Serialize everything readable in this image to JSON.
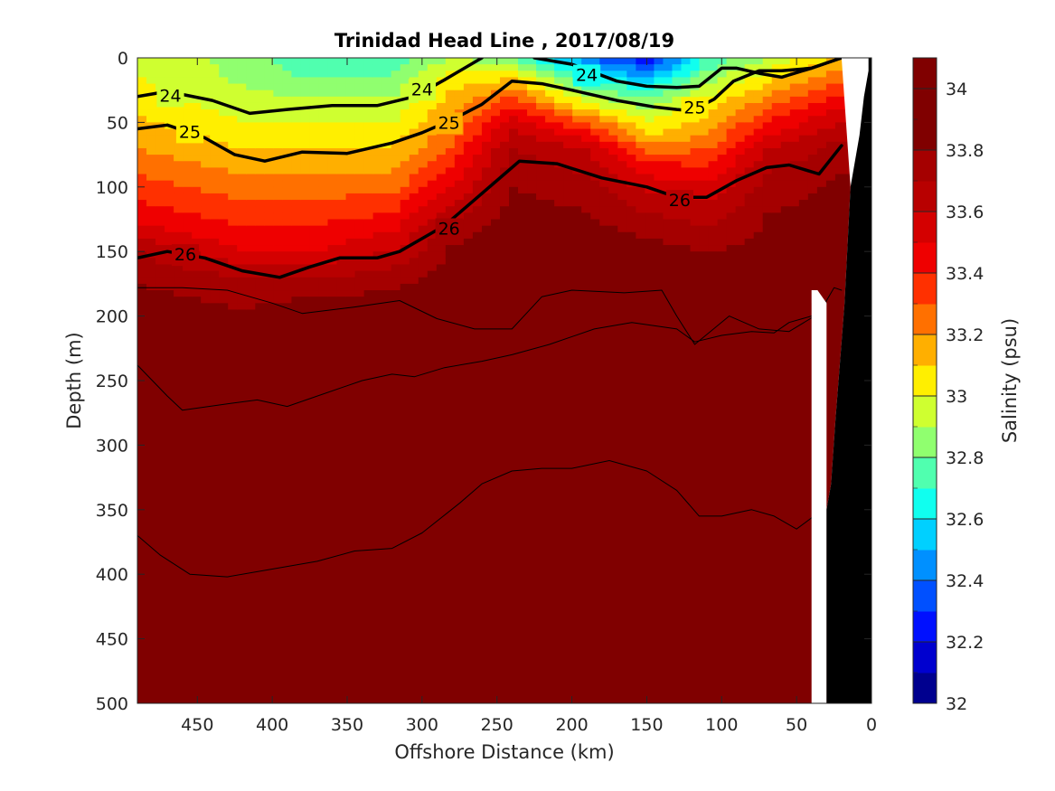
{
  "chart_data": {
    "type": "heatmap",
    "subtype": "filled-contour section",
    "title": "Trinidad Head Line , 2017/08/19",
    "xlabel": "Offshore Distance (km)",
    "ylabel": "Depth (m)",
    "colorbar_label": "Salinity (psu)",
    "xlim": [
      490,
      0
    ],
    "x_reversed": true,
    "ylim": [
      0,
      500
    ],
    "y_reversed": true,
    "x_ticks": [
      450,
      400,
      350,
      300,
      250,
      200,
      150,
      100,
      50,
      0
    ],
    "y_ticks": [
      0,
      50,
      100,
      150,
      200,
      250,
      300,
      350,
      400,
      450,
      500
    ],
    "colorbar": {
      "range": [
        32,
        34.1
      ],
      "step": 0.1,
      "tick_values": [
        32,
        32.2,
        32.4,
        32.6,
        32.8,
        33,
        33.2,
        33.4,
        33.6,
        33.8,
        34
      ],
      "tick_labels": [
        "32",
        "32.2",
        "32.4",
        "32.6",
        "32.8",
        "33",
        "33.2",
        "33.4",
        "33.6",
        "33.8",
        "34"
      ],
      "colors": [
        "#00008f",
        "#0000cf",
        "#0010ff",
        "#0050ff",
        "#0090ff",
        "#00d0ff",
        "#10ffef",
        "#50ffaf",
        "#90ff6f",
        "#cfff30",
        "#ffef00",
        "#ffaf00",
        "#ff7000",
        "#ff3000",
        "#ef0000",
        "#d40000",
        "#b80000",
        "#a50000",
        "#800000"
      ]
    },
    "salinity_profiles": [
      {
        "distance_km": 490,
        "depth_m": [
          0,
          10,
          25,
          45,
          70,
          100,
          130,
          150,
          200,
          400,
          500
        ],
        "salinity_psu": [
          33.0,
          33.0,
          33.02,
          33.1,
          33.2,
          33.35,
          33.5,
          33.7,
          33.9,
          34.0,
          34.0
        ]
      },
      {
        "distance_km": 420,
        "depth_m": [
          0,
          10,
          30,
          60,
          90,
          120,
          150,
          170,
          220,
          450,
          500
        ],
        "salinity_psu": [
          32.85,
          32.87,
          32.92,
          33.05,
          33.2,
          33.35,
          33.5,
          33.7,
          33.9,
          33.95,
          33.95
        ]
      },
      {
        "distance_km": 370,
        "depth_m": [
          0,
          10,
          30,
          60,
          90,
          120,
          150,
          170,
          200,
          400,
          500
        ],
        "salinity_psu": [
          32.7,
          32.75,
          32.9,
          33.05,
          33.2,
          33.35,
          33.5,
          33.7,
          33.9,
          34.0,
          34.0
        ]
      },
      {
        "distance_km": 320,
        "depth_m": [
          0,
          10,
          30,
          60,
          90,
          120,
          150,
          170,
          200,
          400,
          500
        ],
        "salinity_psu": [
          32.75,
          32.78,
          32.9,
          33.05,
          33.2,
          33.4,
          33.6,
          33.75,
          33.9,
          34.0,
          34.05
        ]
      },
      {
        "distance_km": 280,
        "depth_m": [
          0,
          10,
          25,
          50,
          75,
          100,
          125,
          150,
          200,
          350,
          500
        ],
        "salinity_psu": [
          32.9,
          33.0,
          33.1,
          33.2,
          33.35,
          33.5,
          33.7,
          33.82,
          33.9,
          34.0,
          34.05
        ]
      },
      {
        "distance_km": 240,
        "depth_m": [
          0,
          10,
          30,
          50,
          70,
          100,
          150,
          250,
          400,
          500
        ],
        "salinity_psu": [
          32.8,
          33.0,
          33.3,
          33.55,
          33.7,
          33.8,
          33.9,
          34.0,
          34.05,
          34.1
        ]
      },
      {
        "distance_km": 190,
        "depth_m": [
          0,
          10,
          30,
          50,
          70,
          100,
          150,
          250,
          350,
          500
        ],
        "salinity_psu": [
          32.4,
          32.6,
          32.9,
          33.3,
          33.6,
          33.75,
          33.88,
          33.98,
          34.05,
          34.1
        ]
      },
      {
        "distance_km": 150,
        "depth_m": [
          0,
          10,
          30,
          60,
          80,
          110,
          150,
          250,
          400,
          500
        ],
        "salinity_psu": [
          32.2,
          32.4,
          32.8,
          33.1,
          33.4,
          33.65,
          33.85,
          33.95,
          34.05,
          34.05
        ]
      },
      {
        "distance_km": 110,
        "depth_m": [
          0,
          10,
          30,
          60,
          90,
          120,
          150,
          200,
          300,
          500
        ],
        "salinity_psu": [
          32.7,
          32.8,
          33.0,
          33.2,
          33.45,
          33.65,
          33.8,
          33.9,
          33.95,
          34.0
        ]
      },
      {
        "distance_km": 70,
        "depth_m": [
          0,
          10,
          30,
          50,
          70,
          90,
          120,
          200,
          350,
          500
        ],
        "salinity_psu": [
          32.9,
          33.0,
          33.2,
          33.4,
          33.6,
          33.7,
          33.8,
          33.88,
          33.95,
          33.95
        ]
      },
      {
        "distance_km": 25,
        "depth_m": [
          0,
          10,
          25,
          45,
          65,
          90,
          150,
          200,
          330,
          470
        ],
        "salinity_psu": [
          33.1,
          33.2,
          33.35,
          33.55,
          33.7,
          33.8,
          33.88,
          33.9,
          33.95,
          33.97
        ]
      }
    ],
    "density_contours": [
      {
        "label": "24",
        "emphasis": true,
        "x_km": [
          490,
          470,
          440,
          415,
          390,
          360,
          330,
          305,
          285,
          260
        ],
        "depth_m": [
          30,
          26,
          33,
          43,
          40,
          37,
          37,
          30,
          17,
          0
        ],
        "label_at": [
          {
            "x_km": 468,
            "depth_m": 29
          },
          {
            "x_km": 300,
            "depth_m": 24
          }
        ]
      },
      {
        "label": "24",
        "emphasis": true,
        "x_km": [
          225,
          200,
          170,
          150,
          130,
          115,
          100,
          90,
          75,
          60,
          40,
          20
        ],
        "depth_m": [
          0,
          5,
          18,
          22,
          23,
          22,
          8,
          8,
          12,
          15,
          8,
          0
        ],
        "label_at": [
          {
            "x_km": 190,
            "depth_m": 13
          }
        ]
      },
      {
        "label": "25",
        "emphasis": true,
        "x_km": [
          490,
          470,
          445,
          425,
          405,
          380,
          350,
          320,
          300,
          280,
          260,
          240,
          220,
          200,
          170,
          145,
          130,
          120,
          105,
          92,
          75,
          60,
          40,
          20
        ],
        "depth_m": [
          55,
          52,
          62,
          75,
          80,
          73,
          74,
          66,
          58,
          48,
          36,
          18,
          20,
          25,
          33,
          38,
          40,
          41,
          32,
          18,
          10,
          10,
          8,
          0
        ],
        "label_at": [
          {
            "x_km": 455,
            "depth_m": 57
          },
          {
            "x_km": 282,
            "depth_m": 50
          },
          {
            "x_km": 118,
            "depth_m": 38
          }
        ]
      },
      {
        "label": "26",
        "emphasis": true,
        "x_km": [
          490,
          470,
          445,
          420,
          395,
          375,
          355,
          330,
          315,
          300,
          285,
          265,
          245,
          235,
          210,
          180,
          150,
          130,
          110,
          90,
          70,
          55,
          35,
          20
        ],
        "depth_m": [
          155,
          150,
          155,
          165,
          170,
          162,
          155,
          155,
          150,
          140,
          130,
          110,
          90,
          80,
          82,
          93,
          100,
          108,
          108,
          95,
          85,
          83,
          90,
          68
        ],
        "label_at": [
          {
            "x_km": 458,
            "depth_m": 152
          },
          {
            "x_km": 282,
            "depth_m": 132
          },
          {
            "x_km": 128,
            "depth_m": 110
          }
        ]
      },
      {
        "label": "",
        "emphasis": false,
        "x_km": [
          490,
          460,
          430,
          400,
          380,
          345,
          315,
          290,
          265,
          240,
          220,
          200,
          165,
          140,
          130,
          118,
          95,
          75,
          55,
          35,
          25,
          20
        ],
        "depth_m": [
          178,
          178,
          180,
          190,
          198,
          193,
          188,
          202,
          210,
          210,
          185,
          180,
          182,
          180,
          200,
          222,
          200,
          210,
          212,
          198,
          178,
          180
        ]
      },
      {
        "label": "",
        "emphasis": false,
        "x_km": [
          490,
          470,
          460,
          430,
          410,
          390,
          370,
          340,
          320,
          305,
          285,
          260,
          240,
          215,
          185,
          160,
          130,
          118,
          100,
          80,
          65,
          55,
          40,
          30
        ],
        "depth_m": [
          238,
          262,
          273,
          268,
          265,
          270,
          262,
          250,
          245,
          247,
          240,
          235,
          230,
          222,
          210,
          205,
          210,
          220,
          215,
          212,
          213,
          205,
          200,
          190
        ]
      },
      {
        "label": "",
        "emphasis": false,
        "x_km": [
          490,
          475,
          455,
          430,
          400,
          370,
          345,
          320,
          300,
          275,
          260,
          240,
          220,
          200,
          175,
          150,
          130,
          115,
          100,
          80,
          65,
          50,
          35,
          30
        ],
        "depth_m": [
          370,
          385,
          400,
          402,
          396,
          390,
          382,
          380,
          368,
          345,
          330,
          320,
          318,
          318,
          312,
          320,
          335,
          355,
          355,
          350,
          355,
          365,
          352,
          350
        ]
      }
    ],
    "bottom_mask": {
      "fill": "#000000",
      "outline_x_km": [
        2,
        2,
        5,
        8,
        14,
        18,
        20,
        24,
        27,
        30,
        30,
        32,
        35,
        40
      ],
      "outline_depth_m": [
        0,
        10,
        30,
        60,
        100,
        190,
        220,
        280,
        330,
        350,
        500,
        500,
        500,
        500
      ]
    },
    "no_data_mask": {
      "fill": "#ffffff",
      "outline_x_km": [
        30,
        36,
        40,
        40,
        30
      ],
      "outline_depth_m": [
        190,
        180,
        180,
        500,
        500
      ]
    }
  }
}
